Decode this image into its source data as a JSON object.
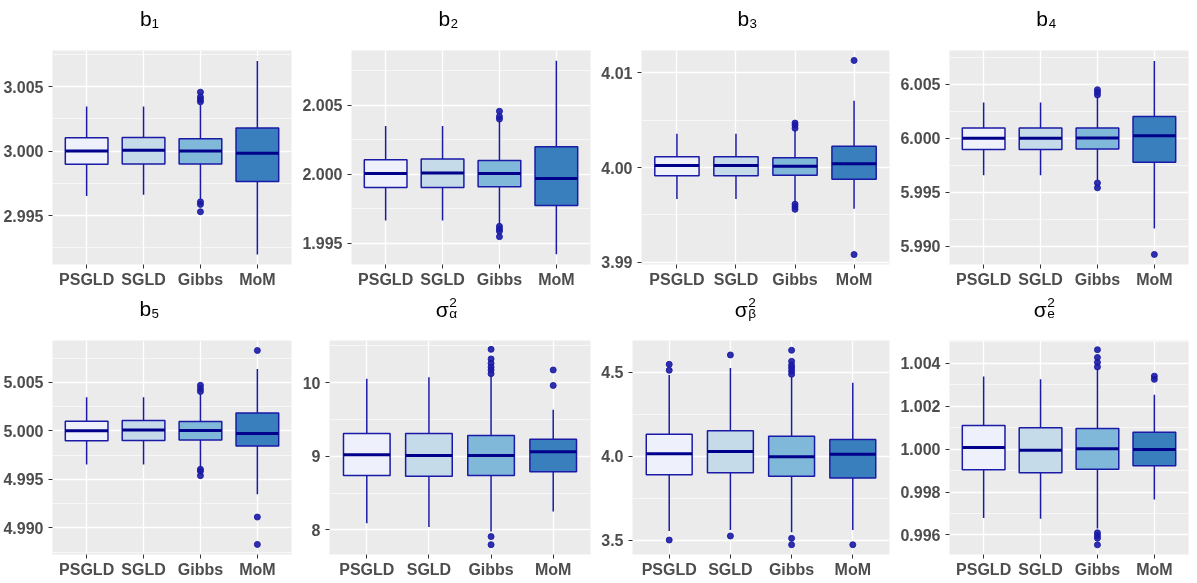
{
  "chart_data": [
    {
      "type": "box",
      "title": "b₁",
      "categories": [
        "PSGLD",
        "SGLD",
        "Gibbs",
        "MoM"
      ],
      "colors": [
        "#eef0fb",
        "#c5dbe9",
        "#80b8d9",
        "#3a7fbd"
      ],
      "grid": true,
      "ylim": [
        2.9912,
        3.0078
      ],
      "yticks": [
        {
          "value": 2.9925,
          "label": null
        },
        {
          "value": 2.995,
          "label": "2.995"
        },
        {
          "value": 2.9975,
          "label": null
        },
        {
          "value": 3.0,
          "label": "3.000"
        },
        {
          "value": 3.0025,
          "label": null
        },
        {
          "value": 3.005,
          "label": "3.005"
        },
        {
          "value": 3.0075,
          "label": null
        }
      ],
      "boxes": [
        {
          "low": 2.99652,
          "q1": 2.99897,
          "median": 3.0,
          "q3": 3.00103,
          "high": 3.00345
        },
        {
          "low": 2.99661,
          "q1": 2.999,
          "median": 3.00006,
          "q3": 3.00106,
          "high": 3.00345
        },
        {
          "low": 2.99629,
          "q1": 2.999,
          "median": 3.0,
          "q3": 3.00095,
          "high": 3.0036,
          "outliers": [
            3.00457,
            3.0042,
            3.004,
            3.00382,
            2.99606,
            2.99586,
            2.99529
          ]
        },
        {
          "low": 2.99198,
          "q1": 2.99764,
          "median": 2.99983,
          "q3": 3.00178,
          "high": 3.00698
        }
      ]
    },
    {
      "type": "box",
      "title": "b₂",
      "categories": [
        "PSGLD",
        "SGLD",
        "Gibbs",
        "MoM"
      ],
      "colors": [
        "#eef0fb",
        "#c5dbe9",
        "#80b8d9",
        "#3a7fbd"
      ],
      "grid": true,
      "ylim": [
        1.99344,
        2.00898
      ],
      "yticks": [
        {
          "value": 1.995,
          "label": "1.995"
        },
        {
          "value": 1.9975,
          "label": null
        },
        {
          "value": 2.0,
          "label": "2.000"
        },
        {
          "value": 2.0025,
          "label": null
        },
        {
          "value": 2.005,
          "label": "2.005"
        },
        {
          "value": 2.0075,
          "label": null
        }
      ],
      "boxes": [
        {
          "low": 1.99664,
          "q1": 1.99903,
          "median": 2.00005,
          "q3": 2.00105,
          "high": 2.00349
        },
        {
          "low": 1.99664,
          "q1": 1.99903,
          "median": 2.00008,
          "q3": 2.0011,
          "high": 2.00349
        },
        {
          "low": 1.99634,
          "q1": 1.99909,
          "median": 2.00005,
          "q3": 2.00099,
          "high": 2.00387,
          "outliers": [
            2.00457,
            2.00419,
            2.004,
            1.99621,
            1.99602,
            1.99586,
            1.99546
          ]
        },
        {
          "low": 1.99419,
          "q1": 1.99772,
          "median": 1.99968,
          "q3": 2.00199,
          "high": 2.00823
        }
      ]
    },
    {
      "type": "box",
      "title": "b₃",
      "categories": [
        "PSGLD",
        "SGLD",
        "Gibbs",
        "MoM"
      ],
      "colors": [
        "#eef0fb",
        "#c5dbe9",
        "#80b8d9",
        "#3a7fbd"
      ],
      "grid": true,
      "ylim": [
        3.98977,
        4.01234
      ],
      "yticks": [
        3.99,
        {
          "value": 3.995,
          "label": null
        },
        {
          "value": 4.0,
          "label": "4.00"
        },
        {
          "value": 4.005,
          "label": null
        },
        4.01
      ],
      "boxes": [
        {
          "low": 3.99668,
          "q1": 3.99914,
          "median": 4.0002,
          "q3": 4.00113,
          "high": 4.00355
        },
        {
          "low": 3.99668,
          "q1": 3.99914,
          "median": 4.0002,
          "q3": 4.00113,
          "high": 4.00355
        },
        {
          "low": 3.99633,
          "q1": 3.99918,
          "median": 4.00012,
          "q3": 4.00102,
          "high": 4.00395,
          "outliers": [
            4.00469,
            4.00445,
            4.00414,
            3.99613,
            3.99586,
            3.99559
          ]
        },
        {
          "low": 3.99566,
          "q1": 3.99875,
          "median": 4.00039,
          "q3": 4.00223,
          "high": 4.00703,
          "outliers": [
            4.01129,
            3.99082
          ]
        }
      ]
    },
    {
      "type": "box",
      "title": "b₄",
      "categories": [
        "PSGLD",
        "SGLD",
        "Gibbs",
        "MoM"
      ],
      "colors": [
        "#eef0fb",
        "#c5dbe9",
        "#80b8d9",
        "#3a7fbd"
      ],
      "grid": true,
      "ylim": [
        5.98832,
        6.00812
      ],
      "yticks": [
        {
          "value": 5.99,
          "label": "5.990"
        },
        {
          "value": 5.9925,
          "label": null
        },
        5.995,
        {
          "value": 5.9975,
          "label": null
        },
        {
          "value": 6.0,
          "label": "6.000"
        },
        {
          "value": 6.0025,
          "label": null
        },
        6.005,
        {
          "value": 6.0075,
          "label": null
        }
      ],
      "boxes": [
        {
          "low": 5.99658,
          "q1": 5.99897,
          "median": 6.0,
          "q3": 6.00096,
          "high": 6.00332
        },
        {
          "low": 5.99658,
          "q1": 5.99897,
          "median": 6.0,
          "q3": 6.00096,
          "high": 6.00332
        },
        {
          "low": 5.99613,
          "q1": 5.99901,
          "median": 6.00003,
          "q3": 6.00096,
          "high": 6.00384,
          "outliers": [
            6.00449,
            6.00425,
            6.00401,
            5.99586,
            5.99541
          ]
        },
        {
          "low": 5.99164,
          "q1": 5.99777,
          "median": 6.00024,
          "q3": 6.00202,
          "high": 6.00716,
          "outliers": [
            5.98925
          ]
        }
      ]
    },
    {
      "type": "box",
      "title": "b₅",
      "categories": [
        "PSGLD",
        "SGLD",
        "Gibbs",
        "MoM"
      ],
      "colors": [
        "#eef0fb",
        "#c5dbe9",
        "#80b8d9",
        "#3a7fbd"
      ],
      "grid": true,
      "ylim": [
        4.98725,
        5.00931
      ],
      "yticks": [
        {
          "value": 4.9875,
          "label": null
        },
        {
          "value": 4.99,
          "label": "4.990"
        },
        {
          "value": 4.9925,
          "label": null
        },
        4.995,
        {
          "value": 4.9975,
          "label": null
        },
        {
          "value": 5.0,
          "label": "5.000"
        },
        {
          "value": 5.0025,
          "label": null
        },
        5.005,
        {
          "value": 5.0075,
          "label": null
        }
      ],
      "boxes": [
        {
          "low": 4.99653,
          "q1": 4.99897,
          "median": 5.0,
          "q3": 5.00099,
          "high": 5.00347
        },
        {
          "low": 4.99653,
          "q1": 4.99901,
          "median": 5.00008,
          "q3": 5.00107,
          "high": 5.00347
        },
        {
          "low": 4.99626,
          "q1": 4.99905,
          "median": 5.00004,
          "q3": 5.00095,
          "high": 5.00378,
          "outliers": [
            5.00469,
            5.00435,
            5.00405,
            4.99603,
            4.99584,
            4.99538
          ]
        },
        {
          "low": 4.99347,
          "q1": 4.99844,
          "median": 4.99973,
          "q3": 5.00183,
          "high": 5.00637,
          "outliers": [
            5.00828,
            4.99111,
            4.98829
          ]
        }
      ]
    },
    {
      "type": "box",
      "title": "σ$^{2}$$_{α}$",
      "categories": [
        "PSGLD",
        "SGLD",
        "Gibbs",
        "MoM"
      ],
      "colors": [
        "#eef0fb",
        "#c5dbe9",
        "#80b8d9",
        "#3a7fbd"
      ],
      "grid": true,
      "ylim": [
        7.667,
        10.57
      ],
      "yticks": [
        8,
        {
          "value": 8.5,
          "label": null
        },
        9,
        {
          "value": 9.5,
          "label": null
        },
        10,
        {
          "value": 10.5,
          "label": null
        }
      ],
      "boxes": [
        {
          "low": 8.09,
          "q1": 8.74,
          "median": 9.02,
          "q3": 9.31,
          "high": 10.05
        },
        {
          "low": 8.04,
          "q1": 8.73,
          "median": 9.01,
          "q3": 9.31,
          "high": 10.07
        },
        {
          "low": 7.98,
          "q1": 8.74,
          "median": 9.01,
          "q3": 9.28,
          "high": 10.1,
          "outliers": [
            10.45,
            10.32,
            10.26,
            10.21,
            10.17,
            10.12,
            7.91,
            7.8
          ]
        },
        {
          "low": 8.25,
          "q1": 8.79,
          "median": 9.06,
          "q3": 9.23,
          "high": 9.63,
          "outliers": [
            10.17,
            9.96
          ]
        }
      ]
    },
    {
      "type": "box",
      "title": "σ$^{2}$$_{β}$",
      "categories": [
        "PSGLD",
        "SGLD",
        "Gibbs",
        "MoM"
      ],
      "colors": [
        "#eef0fb",
        "#c5dbe9",
        "#80b8d9",
        "#3a7fbd"
      ],
      "grid": true,
      "ylim": [
        3.416,
        4.689
      ],
      "yticks": [
        3.5,
        {
          "value": 3.75,
          "label": null
        },
        {
          "value": 4.0,
          "label": "4.0"
        },
        {
          "value": 4.25,
          "label": null
        },
        4.5
      ],
      "boxes": [
        {
          "low": 3.556,
          "q1": 3.89,
          "median": 4.016,
          "q3": 4.131,
          "high": 4.484,
          "outliers": [
            4.547,
            4.512,
            3.502
          ]
        },
        {
          "low": 3.561,
          "q1": 3.902,
          "median": 4.028,
          "q3": 4.152,
          "high": 4.526,
          "outliers": [
            4.603,
            3.526
          ]
        },
        {
          "low": 3.549,
          "q1": 3.881,
          "median": 3.998,
          "q3": 4.119,
          "high": 4.472,
          "outliers": [
            4.631,
            4.565,
            4.542,
            4.526,
            4.507,
            4.488,
            3.512,
            3.474
          ]
        },
        {
          "low": 3.561,
          "q1": 3.871,
          "median": 4.012,
          "q3": 4.1,
          "high": 4.437,
          "outliers": [
            3.474
          ]
        }
      ]
    },
    {
      "type": "box",
      "title": "σ$^{2}$$_{e}$",
      "categories": [
        "PSGLD",
        "SGLD",
        "Gibbs",
        "MoM"
      ],
      "colors": [
        "#eef0fb",
        "#c5dbe9",
        "#80b8d9",
        "#3a7fbd"
      ],
      "grid": true,
      "ylim": [
        0.99509,
        1.00506
      ],
      "yticks": [
        0.996,
        {
          "value": 0.997,
          "label": null
        },
        0.998,
        {
          "value": 0.999,
          "label": null
        },
        {
          "value": 1.0,
          "label": "1.000"
        },
        {
          "value": 1.001,
          "label": null
        },
        1.002,
        {
          "value": 1.003,
          "label": null
        },
        1.004,
        {
          "value": 1.005,
          "label": null
        }
      ],
      "boxes": [
        {
          "low": 0.99679,
          "q1": 0.99904,
          "median": 1.00007,
          "q3": 1.0011,
          "high": 1.00338
        },
        {
          "low": 0.99675,
          "q1": 0.9989,
          "median": 0.99995,
          "q3": 1.00099,
          "high": 1.00325
        },
        {
          "low": 0.9963,
          "q1": 0.99906,
          "median": 1.00002,
          "q3": 1.00096,
          "high": 1.00374,
          "outliers": [
            1.00463,
            1.00427,
            1.00404,
            1.00383,
            0.9961,
            0.99597,
            0.99585,
            0.99554
          ]
        },
        {
          "low": 0.99765,
          "q1": 0.99922,
          "median": 0.99998,
          "q3": 1.00078,
          "high": 1.00253,
          "outliers": [
            1.0034,
            1.00325
          ]
        }
      ]
    }
  ]
}
